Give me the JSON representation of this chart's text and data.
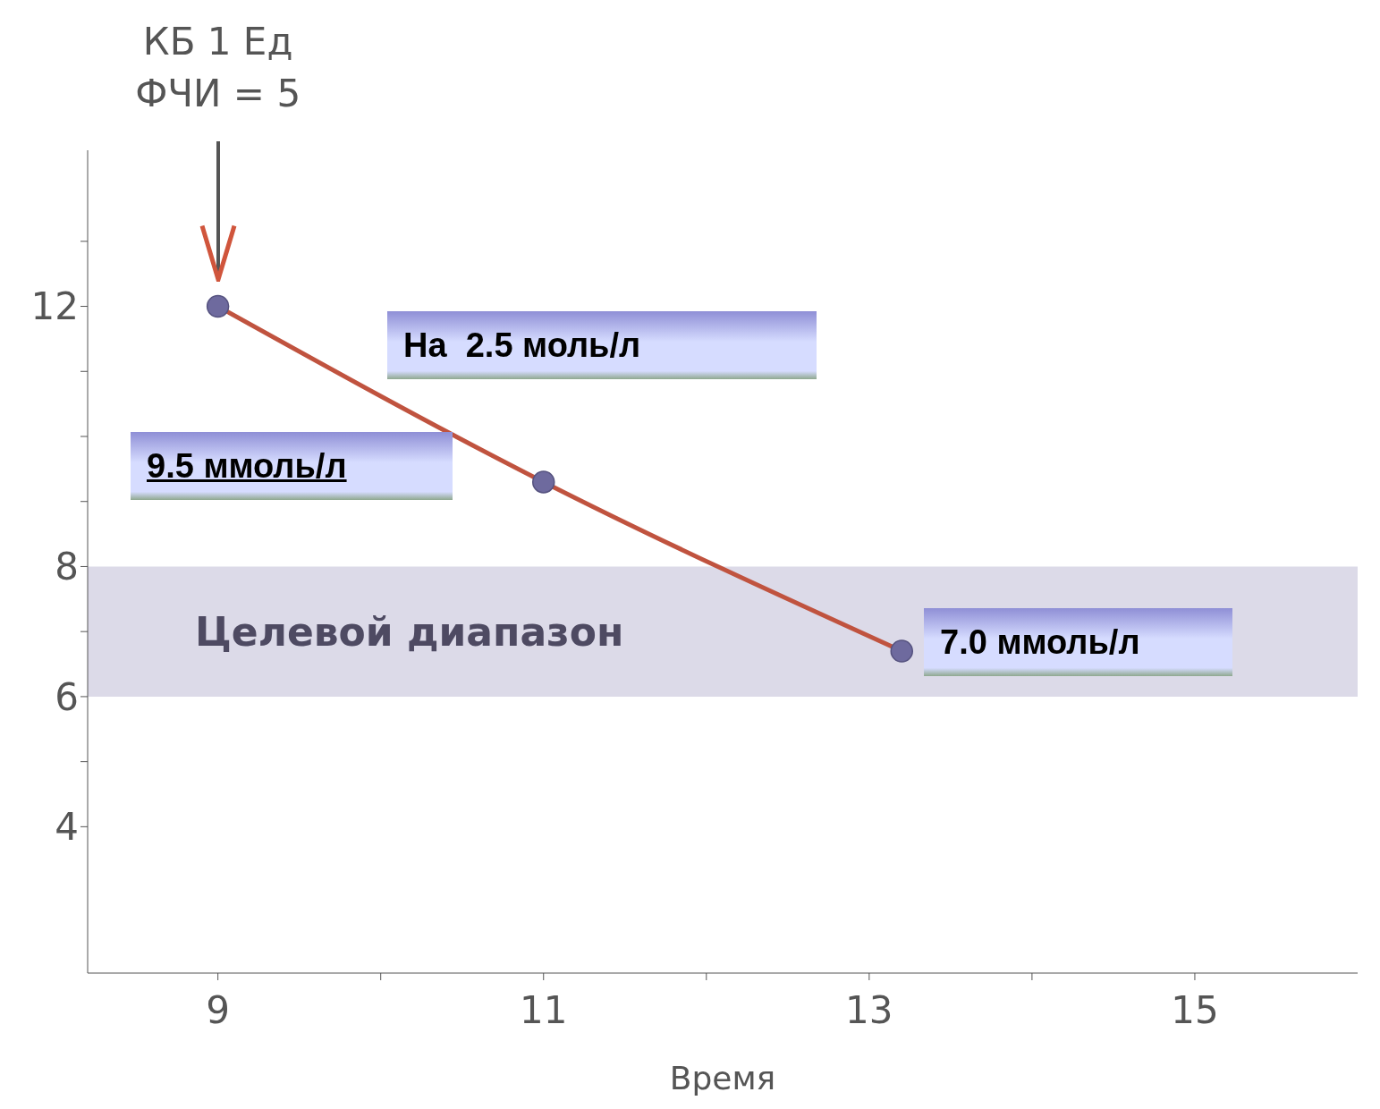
{
  "chart_data": {
    "type": "line",
    "xlabel": "Время",
    "x": [
      9,
      11,
      13.2
    ],
    "series": [
      {
        "color": "#c0533f",
        "colors": [
          "#6e6a9e",
          "#6e6a9e",
          "#6e6a9e"
        ],
        "values": [
          12,
          9.3,
          6.7
        ]
      }
    ],
    "xlim": [
      8.2,
      16
    ],
    "xticks": [
      9,
      {
        "value": 10,
        "label": null
      },
      11,
      {
        "value": 12,
        "label": null
      },
      13,
      {
        "value": 14,
        "label": null
      },
      15
    ],
    "ylim": [
      1.75,
      14.4
    ],
    "yticks": [
      4,
      {
        "value": 5,
        "label": null
      },
      6,
      {
        "value": 7,
        "label": null
      },
      8,
      {
        "value": 9,
        "label": null
      },
      {
        "value": 10,
        "label": null
      },
      {
        "value": 11,
        "label": null
      },
      12,
      {
        "value": 13,
        "label": null
      }
    ],
    "bands": [
      {
        "axis": "y",
        "from": 6,
        "to": 8,
        "label": "Целевой диапазон",
        "color": "#dcdae8"
      }
    ],
    "annotations": [
      "КБ 1 Ед\nФЧИ = 5",
      "На  2.5 моль/л",
      "9.5 ммоль/л",
      "7.0 ммоль/л"
    ],
    "marker": "circle",
    "line_style": "solid",
    "grid": false,
    "legend": false
  }
}
